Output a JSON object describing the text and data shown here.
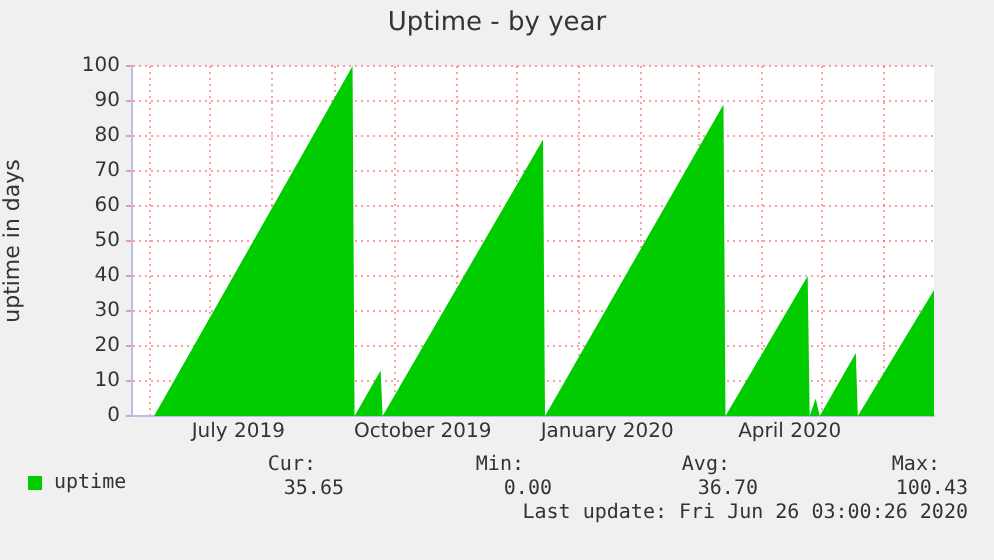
{
  "chart_data": {
    "type": "area",
    "title": "Uptime - by year",
    "ylabel": "uptime in days",
    "x": [
      "2019-06-03",
      "2019-09-10",
      "2019-09-11",
      "2019-09-24",
      "2019-09-25",
      "2019-12-14",
      "2019-12-15",
      "2020-03-13",
      "2020-03-14",
      "2020-04-24",
      "2020-04-25",
      "2020-04-28",
      "2020-04-30",
      "2020-05-18",
      "2020-05-19",
      "2020-06-26"
    ],
    "series": [
      {
        "name": "uptime",
        "color": "#00cc00",
        "values": [
          0,
          100,
          0,
          13,
          0,
          79,
          0,
          89,
          0,
          40,
          0,
          5,
          0,
          18,
          0,
          36
        ]
      }
    ],
    "xlim": [
      "2019-05-23",
      "2020-06-26"
    ],
    "xticks": [
      {
        "value": "2019-06-01",
        "label": null
      },
      {
        "value": "2019-07-01",
        "label": null
      },
      {
        "value": "2019-07-15",
        "label": "July 2019"
      },
      {
        "value": "2019-08-01",
        "label": null
      },
      {
        "value": "2019-09-01",
        "label": null
      },
      {
        "value": "2019-10-01",
        "label": null
      },
      {
        "value": "2019-10-15",
        "label": "October 2019"
      },
      {
        "value": "2019-11-01",
        "label": null
      },
      {
        "value": "2019-12-01",
        "label": null
      },
      {
        "value": "2020-01-01",
        "label": null
      },
      {
        "value": "2020-01-15",
        "label": "January 2020"
      },
      {
        "value": "2020-02-01",
        "label": null
      },
      {
        "value": "2020-03-01",
        "label": null
      },
      {
        "value": "2020-04-01",
        "label": null
      },
      {
        "value": "2020-04-15",
        "label": "April 2020"
      },
      {
        "value": "2020-05-01",
        "label": null
      },
      {
        "value": "2020-06-01",
        "label": null
      }
    ],
    "ylim": [
      0,
      100
    ],
    "yticks": [
      0,
      10,
      20,
      30,
      40,
      50,
      60,
      70,
      80,
      90,
      100
    ],
    "grid": true,
    "legend": "bottom left",
    "marker": "none",
    "annotations": [
      "Cur:",
      "35.65",
      "Min:",
      "0.00",
      "Avg:",
      "36.70",
      "Max:",
      "100.43",
      "Last update: Fri Jun 26 03:00:26 2020"
    ]
  }
}
